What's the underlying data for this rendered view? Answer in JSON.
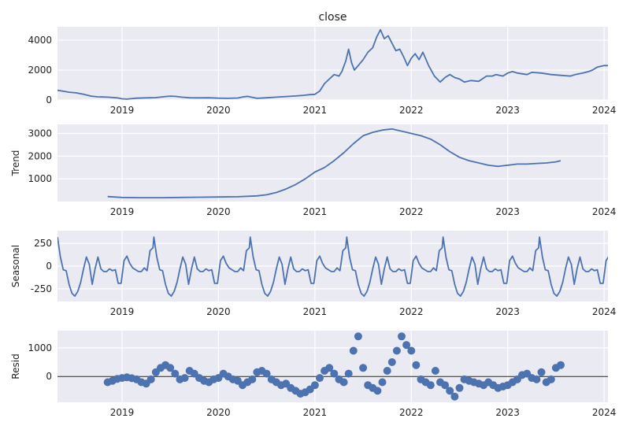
{
  "chart_data": [
    {
      "type": "line",
      "title": "close",
      "ylabel": "",
      "ylim": [
        0,
        4900
      ],
      "yticks": [
        0,
        2000,
        4000
      ],
      "xlim": [
        2018.33,
        2024.04
      ],
      "xticks": [
        "2019",
        "2020",
        "2021",
        "2022",
        "2023",
        "2024"
      ],
      "grid": true,
      "series": [
        {
          "x": [
            2018.33,
            2018.38,
            2018.45,
            2018.52,
            2018.6,
            2018.68,
            2018.75,
            2018.85,
            2018.95,
            2019.0,
            2019.05,
            2019.15,
            2019.25,
            2019.35,
            2019.45,
            2019.5,
            2019.55,
            2019.62,
            2019.7,
            2019.8,
            2019.9,
            2020.0,
            2020.1,
            2020.2,
            2020.25,
            2020.3,
            2020.4,
            2020.5,
            2020.6,
            2020.7,
            2020.8,
            2020.88,
            2020.95,
            2021.0,
            2021.05,
            2021.1,
            2021.15,
            2021.2,
            2021.25,
            2021.28,
            2021.32,
            2021.35,
            2021.38,
            2021.41,
            2021.45,
            2021.5,
            2021.55,
            2021.6,
            2021.64,
            2021.68,
            2021.72,
            2021.76,
            2021.8,
            2021.84,
            2021.88,
            2021.92,
            2021.96,
            2022.0,
            2022.04,
            2022.08,
            2022.12,
            2022.18,
            2022.24,
            2022.3,
            2022.35,
            2022.4,
            2022.45,
            2022.5,
            2022.55,
            2022.62,
            2022.7,
            2022.78,
            2022.84,
            2022.88,
            2022.95,
            2023.0,
            2023.05,
            2023.1,
            2023.2,
            2023.25,
            2023.35,
            2023.45,
            2023.55,
            2023.65,
            2023.7,
            2023.78,
            2023.84,
            2023.88,
            2023.93,
            2024.0,
            2024.04
          ],
          "values": [
            650,
            600,
            520,
            480,
            380,
            260,
            210,
            190,
            140,
            80,
            60,
            120,
            140,
            160,
            230,
            260,
            240,
            190,
            150,
            140,
            150,
            120,
            110,
            130,
            200,
            240,
            110,
            150,
            190,
            230,
            270,
            310,
            360,
            380,
            600,
            1100,
            1400,
            1700,
            1600,
            1900,
            2600,
            3400,
            2500,
            2000,
            2300,
            2700,
            3200,
            3500,
            4200,
            4700,
            4100,
            4300,
            3800,
            3300,
            3400,
            2900,
            2300,
            2800,
            3100,
            2700,
            3200,
            2300,
            1600,
            1200,
            1500,
            1700,
            1500,
            1400,
            1200,
            1300,
            1250,
            1600,
            1600,
            1700,
            1600,
            1800,
            1900,
            1800,
            1700,
            1850,
            1800,
            1700,
            1650,
            1600,
            1700,
            1800,
            1900,
            2000,
            2200,
            2300,
            2300
          ]
        }
      ]
    },
    {
      "type": "line",
      "ylabel": "Trend",
      "ylim": [
        0,
        3400
      ],
      "yticks": [
        1000,
        2000,
        3000
      ],
      "xlim": [
        2018.33,
        2024.04
      ],
      "xticks": [
        "2019",
        "2020",
        "2021",
        "2022",
        "2023",
        "2024"
      ],
      "grid": true,
      "series": [
        {
          "x": [
            2018.85,
            2019.0,
            2019.2,
            2019.4,
            2019.6,
            2019.8,
            2020.0,
            2020.2,
            2020.4,
            2020.5,
            2020.6,
            2020.7,
            2020.8,
            2020.9,
            2020.95,
            2021.0,
            2021.1,
            2021.2,
            2021.3,
            2021.4,
            2021.5,
            2021.6,
            2021.7,
            2021.8,
            2021.85,
            2021.9,
            2022.0,
            2022.1,
            2022.2,
            2022.3,
            2022.4,
            2022.5,
            2022.6,
            2022.7,
            2022.8,
            2022.9,
            2023.0,
            2023.1,
            2023.2,
            2023.3,
            2023.4,
            2023.5,
            2023.55
          ],
          "values": [
            220,
            180,
            170,
            170,
            180,
            190,
            200,
            210,
            250,
            300,
            400,
            550,
            750,
            1000,
            1150,
            1300,
            1500,
            1800,
            2150,
            2550,
            2900,
            3050,
            3150,
            3200,
            3150,
            3100,
            3000,
            2900,
            2750,
            2500,
            2200,
            1950,
            1800,
            1700,
            1600,
            1550,
            1600,
            1650,
            1650,
            1680,
            1700,
            1750,
            1800
          ]
        }
      ]
    },
    {
      "type": "line",
      "ylabel": "Seasonal",
      "ylim": [
        -390,
        390
      ],
      "yticks": [
        -250,
        0,
        250
      ],
      "xlim": [
        2018.33,
        2024.04
      ],
      "xticks": [
        "2019",
        "2020",
        "2021",
        "2022",
        "2023",
        "2024"
      ],
      "grid": true,
      "season_length": 1.0,
      "season_pattern": {
        "phase": [
          0.0,
          0.03,
          0.06,
          0.09,
          0.12,
          0.15,
          0.18,
          0.21,
          0.24,
          0.27,
          0.3,
          0.33,
          0.36,
          0.39,
          0.42,
          0.45,
          0.48,
          0.51,
          0.54,
          0.57,
          0.6,
          0.63,
          0.66,
          0.69,
          0.72,
          0.75,
          0.78,
          0.81,
          0.84,
          0.87,
          0.9,
          0.93,
          0.96,
          0.99
        ],
        "values": [
          320,
          100,
          -40,
          -50,
          -200,
          -300,
          -330,
          -280,
          -180,
          -30,
          100,
          20,
          -200,
          -30,
          100,
          -30,
          -60,
          -60,
          -30,
          -50,
          -40,
          -190,
          -190,
          60,
          110,
          30,
          -20,
          -40,
          -60,
          -60,
          -20,
          -50,
          170,
          200
        ]
      }
    },
    {
      "type": "scatter",
      "ylabel": "Resid",
      "ylim": [
        -900,
        1600
      ],
      "yticks": [
        0,
        1000
      ],
      "xlim": [
        2018.33,
        2024.04
      ],
      "xticks": [
        "2019",
        "2020",
        "2021",
        "2022",
        "2023",
        "2024"
      ],
      "grid": true,
      "zero_line": true,
      "series": [
        {
          "x": [
            2018.85,
            2018.9,
            2018.95,
            2019.0,
            2019.05,
            2019.1,
            2019.15,
            2019.2,
            2019.25,
            2019.3,
            2019.35,
            2019.4,
            2019.45,
            2019.5,
            2019.55,
            2019.6,
            2019.65,
            2019.7,
            2019.75,
            2019.8,
            2019.85,
            2019.9,
            2019.95,
            2020.0,
            2020.05,
            2020.1,
            2020.15,
            2020.2,
            2020.25,
            2020.3,
            2020.35,
            2020.4,
            2020.45,
            2020.5,
            2020.55,
            2020.6,
            2020.65,
            2020.7,
            2020.75,
            2020.8,
            2020.85,
            2020.9,
            2020.95,
            2021.0,
            2021.05,
            2021.1,
            2021.15,
            2021.2,
            2021.25,
            2021.3,
            2021.35,
            2021.4,
            2021.45,
            2021.5,
            2021.55,
            2021.6,
            2021.65,
            2021.7,
            2021.75,
            2021.8,
            2021.85,
            2021.9,
            2021.95,
            2022.0,
            2022.05,
            2022.1,
            2022.15,
            2022.2,
            2022.25,
            2022.3,
            2022.35,
            2022.4,
            2022.45,
            2022.5,
            2022.55,
            2022.6,
            2022.65,
            2022.7,
            2022.75,
            2022.8,
            2022.85,
            2022.9,
            2022.95,
            2023.0,
            2023.05,
            2023.1,
            2023.15,
            2023.2,
            2023.25,
            2023.3,
            2023.35,
            2023.4,
            2023.45,
            2023.5,
            2023.55
          ],
          "values": [
            -200,
            -150,
            -80,
            -50,
            -30,
            -60,
            -100,
            -200,
            -250,
            -100,
            150,
            300,
            400,
            300,
            100,
            -100,
            -50,
            200,
            100,
            -50,
            -150,
            -200,
            -100,
            -50,
            100,
            0,
            -100,
            -150,
            -300,
            -200,
            -100,
            150,
            200,
            100,
            -100,
            -200,
            -300,
            -250,
            -400,
            -500,
            -600,
            -550,
            -450,
            -300,
            -50,
            200,
            300,
            100,
            -100,
            -200,
            100,
            900,
            1400,
            300,
            -300,
            -400,
            -500,
            -200,
            200,
            500,
            900,
            1400,
            1100,
            900,
            400,
            -100,
            -200,
            -300,
            200,
            -200,
            -300,
            -500,
            -700,
            -400,
            -100,
            -150,
            -200,
            -250,
            -300,
            -200,
            -300,
            -400,
            -350,
            -300,
            -200,
            -100,
            50,
            100,
            -50,
            -100,
            150,
            -200,
            -100,
            300,
            400
          ]
        }
      ]
    }
  ]
}
